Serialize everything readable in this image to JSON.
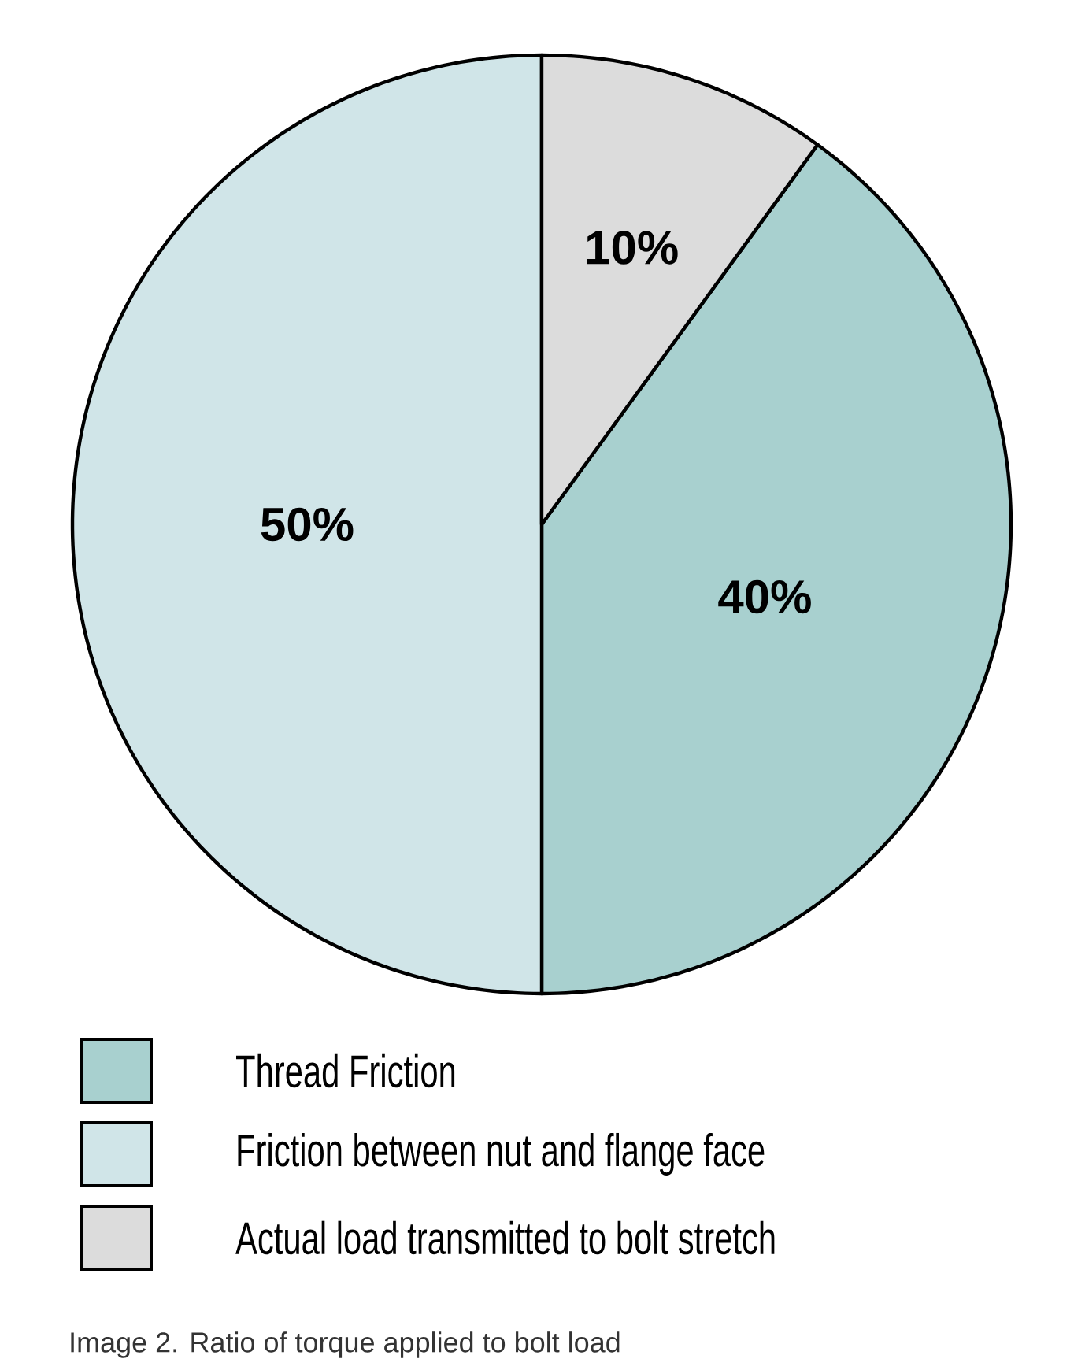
{
  "chart_data": {
    "type": "pie",
    "categories": [
      "Thread Friction",
      "Friction between nut and flange face",
      "Actual load transmitted to bolt stretch"
    ],
    "values": [
      40,
      50,
      10
    ],
    "colors": [
      "#a8d0cf",
      "#d0e5e8",
      "#dcdcdc"
    ],
    "value_labels": [
      "40%",
      "50%",
      "10%"
    ],
    "legend": "bottom",
    "annotations": [
      "Image 2. Ratio of torque applied to bolt load"
    ]
  }
}
